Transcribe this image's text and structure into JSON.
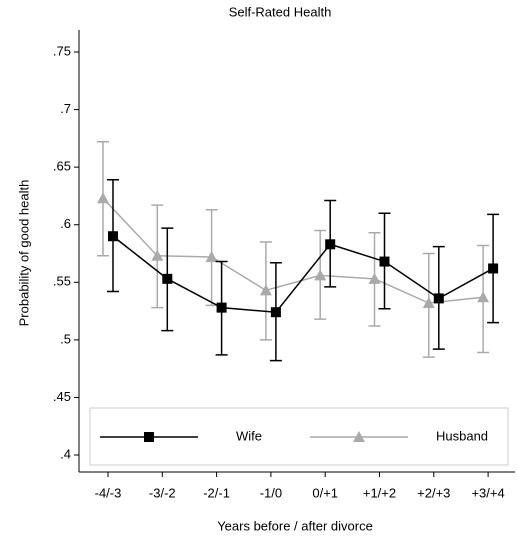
{
  "chart_data": {
    "type": "line",
    "title": "Self-Rated Health",
    "x_label": "Years before / after divorce",
    "y_label": "Probability of good health",
    "categories": [
      "-4/-3",
      "-3/-2",
      "-2/-1",
      "-1/0",
      "0/+1",
      "+1/+2",
      "+2/+3",
      "+3/+4"
    ],
    "ylim": [
      0.4,
      0.76
    ],
    "yticks": [
      {
        "value": 0.4,
        "label": ".4"
      },
      {
        "value": 0.45,
        "label": ".45"
      },
      {
        "value": 0.5,
        "label": ".5"
      },
      {
        "value": 0.55,
        "label": ".55"
      },
      {
        "value": 0.6,
        "label": ".6"
      },
      {
        "value": 0.65,
        "label": ".65"
      },
      {
        "value": 0.7,
        "label": ".7"
      },
      {
        "value": 0.75,
        "label": ".75"
      }
    ],
    "legend": "bottom",
    "series": [
      {
        "name": "Wife",
        "color": "#000000",
        "marker": "square",
        "values": [
          0.59,
          0.553,
          0.528,
          0.524,
          0.583,
          0.568,
          0.536,
          0.562
        ],
        "ci_low": [
          0.542,
          0.508,
          0.487,
          0.482,
          0.546,
          0.527,
          0.492,
          0.515
        ],
        "ci_high": [
          0.639,
          0.597,
          0.568,
          0.567,
          0.621,
          0.61,
          0.581,
          0.609
        ]
      },
      {
        "name": "Husband",
        "color": "#aaaaaa",
        "marker": "triangle",
        "values": [
          0.623,
          0.573,
          0.572,
          0.543,
          0.556,
          0.553,
          0.532,
          0.537
        ],
        "ci_low": [
          0.573,
          0.528,
          0.53,
          0.5,
          0.518,
          0.512,
          0.485,
          0.489
        ],
        "ci_high": [
          0.672,
          0.617,
          0.613,
          0.585,
          0.595,
          0.593,
          0.575,
          0.582
        ]
      }
    ]
  }
}
